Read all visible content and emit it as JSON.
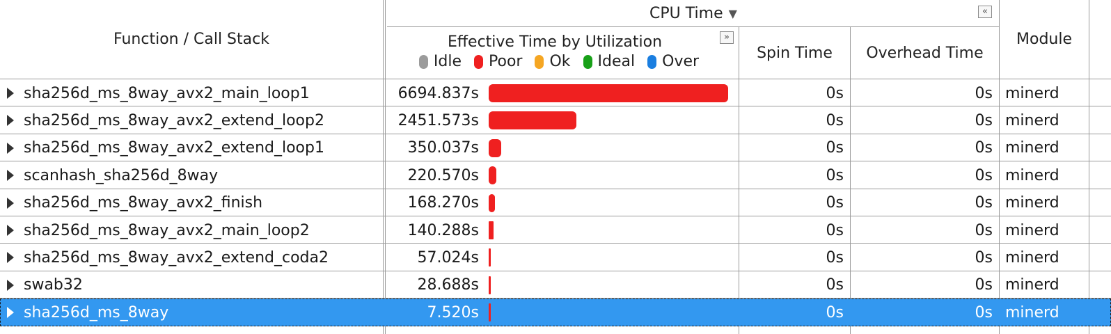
{
  "header": {
    "function_col": "Function / Call Stack",
    "cpu_time": "CPU Time",
    "cpu_time_sort": "▼",
    "collapse_glyph": "«",
    "expand_glyph": "»",
    "effective_time": "Effective Time by Utilization",
    "spin_time": "Spin Time",
    "overhead_time": "Overhead Time",
    "module": "Module",
    "legend": [
      {
        "label": "Idle",
        "color": "#9b9b9b"
      },
      {
        "label": "Poor",
        "color": "#ef2020"
      },
      {
        "label": "Ok",
        "color": "#f5a623"
      },
      {
        "label": "Ideal",
        "color": "#18a018"
      },
      {
        "label": "Over",
        "color": "#1a7ee0"
      }
    ]
  },
  "bar_color": "#ef2020",
  "bar_max_seconds": 6694.837,
  "rows": [
    {
      "name": "sha256d_ms_8way_avx2_main_loop1",
      "time": "6694.837s",
      "seconds": 6694.837,
      "spin": "0s",
      "overhead": "0s",
      "module": "minerd",
      "selected": false
    },
    {
      "name": "sha256d_ms_8way_avx2_extend_loop2",
      "time": "2451.573s",
      "seconds": 2451.573,
      "spin": "0s",
      "overhead": "0s",
      "module": "minerd",
      "selected": false
    },
    {
      "name": "sha256d_ms_8way_avx2_extend_loop1",
      "time": "350.037s",
      "seconds": 350.037,
      "spin": "0s",
      "overhead": "0s",
      "module": "minerd",
      "selected": false
    },
    {
      "name": "scanhash_sha256d_8way",
      "time": "220.570s",
      "seconds": 220.57,
      "spin": "0s",
      "overhead": "0s",
      "module": "minerd",
      "selected": false
    },
    {
      "name": "sha256d_ms_8way_avx2_finish",
      "time": "168.270s",
      "seconds": 168.27,
      "spin": "0s",
      "overhead": "0s",
      "module": "minerd",
      "selected": false
    },
    {
      "name": "sha256d_ms_8way_avx2_main_loop2",
      "time": "140.288s",
      "seconds": 140.288,
      "spin": "0s",
      "overhead": "0s",
      "module": "minerd",
      "selected": false
    },
    {
      "name": "sha256d_ms_8way_avx2_extend_coda2",
      "time": "57.024s",
      "seconds": 57.024,
      "spin": "0s",
      "overhead": "0s",
      "module": "minerd",
      "selected": false
    },
    {
      "name": "swab32",
      "time": "28.688s",
      "seconds": 28.688,
      "spin": "0s",
      "overhead": "0s",
      "module": "minerd",
      "selected": false
    },
    {
      "name": "sha256d_ms_8way",
      "time": "7.520s",
      "seconds": 7.52,
      "spin": "0s",
      "overhead": "0s",
      "module": "minerd",
      "selected": true
    }
  ]
}
